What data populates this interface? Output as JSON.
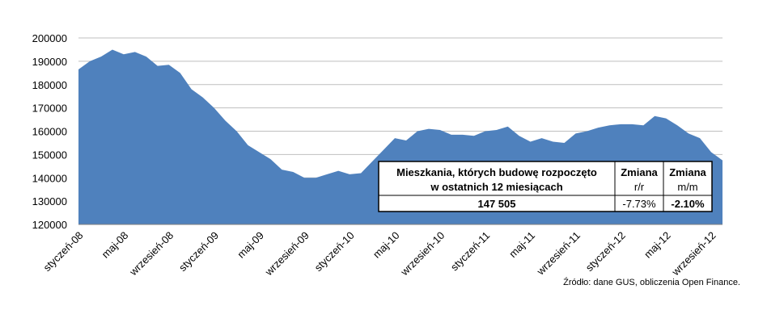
{
  "chart_data": {
    "type": "area",
    "categories": [
      "styczeń-08",
      null,
      null,
      null,
      "maj-08",
      null,
      null,
      null,
      "wrzesień-08",
      null,
      null,
      null,
      "styczeń-09",
      null,
      null,
      null,
      "maj-09",
      null,
      null,
      null,
      "wrzesień-09",
      null,
      null,
      null,
      "styczeń-10",
      null,
      null,
      null,
      "maj-10",
      null,
      null,
      null,
      "wrzesień-10",
      null,
      null,
      null,
      "styczeń-11",
      null,
      null,
      null,
      "maj-11",
      null,
      null,
      null,
      "wrzesień-11",
      null,
      null,
      null,
      "styczeń-12",
      null,
      null,
      null,
      "maj-12",
      null,
      null,
      null,
      "wrzesień-12",
      null
    ],
    "values": [
      186500,
      190000,
      192000,
      195000,
      193000,
      194000,
      192000,
      188000,
      188500,
      185000,
      178000,
      174500,
      170000,
      164500,
      160000,
      154000,
      151000,
      148000,
      143500,
      142500,
      140000,
      140000,
      141500,
      143000,
      141500,
      142000,
      147000,
      152000,
      157000,
      156000,
      160000,
      161000,
      160500,
      158500,
      158500,
      158000,
      160000,
      160500,
      162000,
      158000,
      155500,
      157000,
      155500,
      155000,
      159000,
      160000,
      161500,
      162500,
      163000,
      163000,
      162500,
      166500,
      165500,
      162500,
      159000,
      157000,
      151000,
      147500
    ],
    "color": "#4f81bd",
    "ylim": [
      120000,
      200000
    ],
    "yticks": [
      120000,
      130000,
      140000,
      150000,
      160000,
      170000,
      180000,
      190000,
      200000
    ],
    "grid": true,
    "table": {
      "header": [
        "Mieszkania, których budowę rozpoczęto",
        "w ostatnich 12 miesiącach",
        "Zmiana",
        "r/r",
        "Zmiana",
        "m/m"
      ],
      "row": [
        "147 505",
        "-7.73%",
        "-2.10%"
      ]
    },
    "source": "Źródło: dane GUS, obliczenia Open Finance."
  }
}
